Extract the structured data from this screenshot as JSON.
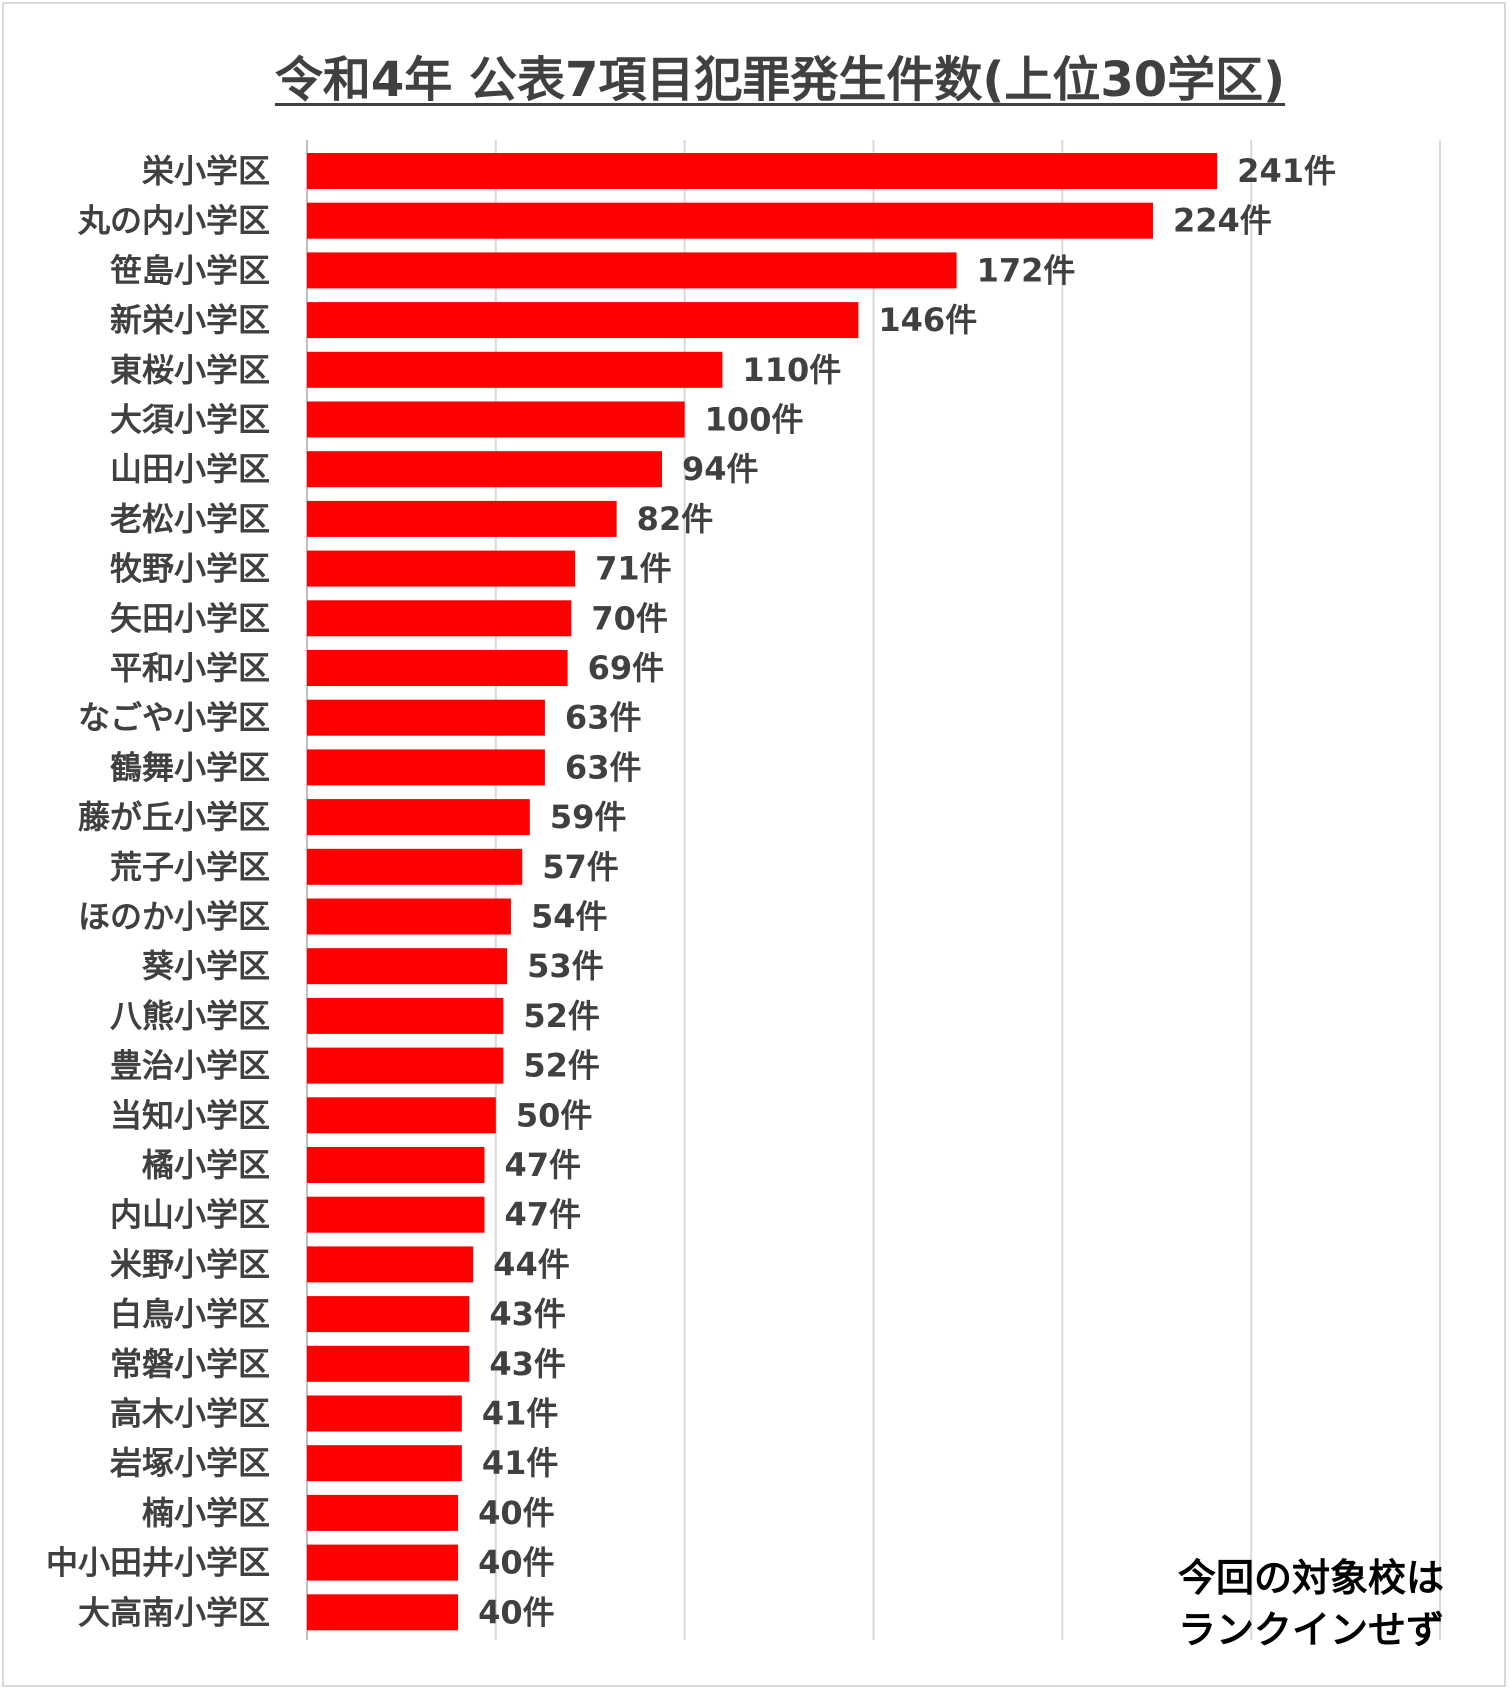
{
  "chart_data": {
    "type": "bar",
    "orientation": "horizontal",
    "title": "令和4年 公表7項目犯罪発生件数(上位30学区)",
    "xlabel": "",
    "ylabel": "",
    "xlim": [
      0,
      300
    ],
    "grid": true,
    "bar_color": "#ff0000",
    "value_suffix": "件",
    "categories": [
      "栄小学区",
      "丸の内小学区",
      "笹島小学区",
      "新栄小学区",
      "東桜小学区",
      "大須小学区",
      "山田小学区",
      "老松小学区",
      "牧野小学区",
      "矢田小学区",
      "平和小学区",
      "なごや小学区",
      "鶴舞小学区",
      "藤が丘小学区",
      "荒子小学区",
      "ほのか小学区",
      "葵小学区",
      "八熊小学区",
      "豊治小学区",
      "当知小学区",
      "橘小学区",
      "内山小学区",
      "米野小学区",
      "白鳥小学区",
      "常磐小学区",
      "高木小学区",
      "岩塚小学区",
      "楠小学区",
      "中小田井小学区",
      "大高南小学区"
    ],
    "values": [
      241,
      224,
      172,
      146,
      110,
      100,
      94,
      82,
      71,
      70,
      69,
      63,
      63,
      59,
      57,
      54,
      53,
      52,
      52,
      50,
      47,
      47,
      44,
      43,
      43,
      41,
      41,
      40,
      40,
      40
    ],
    "value_labels": [
      "241件",
      "224件",
      "172件",
      "146件",
      "110件",
      "100件",
      "94件",
      "82件",
      "71件",
      "70件",
      "69件",
      "63件",
      "63件",
      "59件",
      "57件",
      "54件",
      "53件",
      "52件",
      "52件",
      "50件",
      "47件",
      "47件",
      "44件",
      "43件",
      "43件",
      "41件",
      "41件",
      "40件",
      "40件",
      "40件"
    ]
  },
  "note": {
    "line1": "今回の対象校は",
    "line2": "ランクインせず"
  }
}
